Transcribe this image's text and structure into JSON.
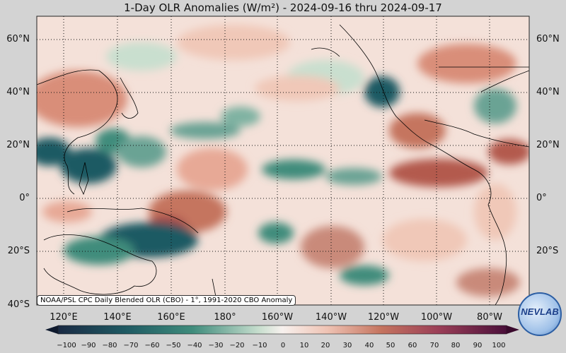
{
  "title": "1-Day OLR Anomalies (W/m²) - 2024-09-16 thru 2024-09-17",
  "map": {
    "lat_labels": [
      "60°N",
      "40°N",
      "20°N",
      "0°",
      "20°S",
      "40°S"
    ],
    "lon_labels": [
      "120°E",
      "140°E",
      "160°E",
      "180°",
      "160°W",
      "140°W",
      "120°W",
      "100°W",
      "80°W"
    ],
    "credit": "NOAA/PSL CPC Daily Blended OLR (CBO) - 1°, 1991-2020 CBO Anomaly",
    "colors": {
      "negative": "#1f5a63",
      "neutral": "#f7f1ee",
      "positive": "#b35a4d",
      "ocean_bg": "#f4e1d9"
    }
  },
  "colorbar": {
    "ticks": [
      "−100",
      "−90",
      "−80",
      "−70",
      "−60",
      "−50",
      "−40",
      "−30",
      "−20",
      "−10",
      "0",
      "10",
      "20",
      "30",
      "40",
      "50",
      "60",
      "70",
      "80",
      "90",
      "100"
    ]
  },
  "logo": {
    "text": "NEVLAB"
  }
}
